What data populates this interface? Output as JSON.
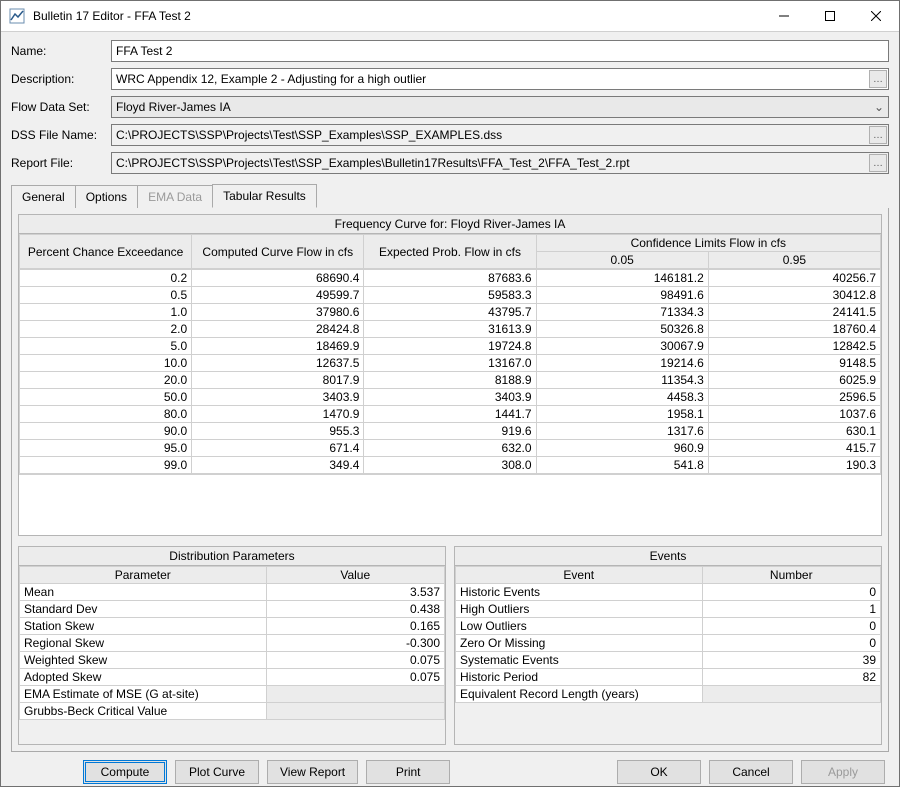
{
  "window": {
    "title": "Bulletin 17 Editor - FFA Test 2"
  },
  "form": {
    "name_label": "Name:",
    "name_value": "FFA Test 2",
    "description_label": "Description:",
    "description_value": "WRC Appendix 12, Example 2 - Adjusting for a high outlier",
    "dataset_label": "Flow Data Set:",
    "dataset_value": "Floyd River-James IA",
    "dss_label": "DSS File Name:",
    "dss_value": "C:\\PROJECTS\\SSP\\Projects\\Test\\SSP_Examples\\SSP_EXAMPLES.dss",
    "report_label": "Report File:",
    "report_value": "C:\\PROJECTS\\SSP\\Projects\\Test\\SSP_Examples\\Bulletin17Results\\FFA_Test_2\\FFA_Test_2.rpt"
  },
  "tabs": {
    "general": "General",
    "options": "Options",
    "ema": "EMA Data",
    "tabular": "Tabular Results"
  },
  "freq": {
    "title": "Frequency Curve for: Floyd River-James IA",
    "headers": {
      "pce": "Percent Chance Exceedance",
      "computed": "Computed Curve Flow in cfs",
      "expected": "Expected Prob. Flow in cfs",
      "conf": "Confidence Limits Flow in cfs",
      "c05": "0.05",
      "c95": "0.95"
    },
    "rows": [
      {
        "p": "0.2",
        "c": "68690.4",
        "e": "87683.6",
        "l": "146181.2",
        "u": "40256.7"
      },
      {
        "p": "0.5",
        "c": "49599.7",
        "e": "59583.3",
        "l": "98491.6",
        "u": "30412.8"
      },
      {
        "p": "1.0",
        "c": "37980.6",
        "e": "43795.7",
        "l": "71334.3",
        "u": "24141.5"
      },
      {
        "p": "2.0",
        "c": "28424.8",
        "e": "31613.9",
        "l": "50326.8",
        "u": "18760.4"
      },
      {
        "p": "5.0",
        "c": "18469.9",
        "e": "19724.8",
        "l": "30067.9",
        "u": "12842.5"
      },
      {
        "p": "10.0",
        "c": "12637.5",
        "e": "13167.0",
        "l": "19214.6",
        "u": "9148.5"
      },
      {
        "p": "20.0",
        "c": "8017.9",
        "e": "8188.9",
        "l": "11354.3",
        "u": "6025.9"
      },
      {
        "p": "50.0",
        "c": "3403.9",
        "e": "3403.9",
        "l": "4458.3",
        "u": "2596.5"
      },
      {
        "p": "80.0",
        "c": "1470.9",
        "e": "1441.7",
        "l": "1958.1",
        "u": "1037.6"
      },
      {
        "p": "90.0",
        "c": "955.3",
        "e": "919.6",
        "l": "1317.6",
        "u": "630.1"
      },
      {
        "p": "95.0",
        "c": "671.4",
        "e": "632.0",
        "l": "960.9",
        "u": "415.7"
      },
      {
        "p": "99.0",
        "c": "349.4",
        "e": "308.0",
        "l": "541.8",
        "u": "190.3"
      }
    ]
  },
  "dist": {
    "title": "Distribution Parameters",
    "h_param": "Parameter",
    "h_value": "Value",
    "rows": [
      {
        "n": "Mean",
        "v": "3.537"
      },
      {
        "n": "Standard Dev",
        "v": "0.438"
      },
      {
        "n": "Station Skew",
        "v": "0.165"
      },
      {
        "n": "Regional Skew",
        "v": "-0.300"
      },
      {
        "n": "Weighted Skew",
        "v": "0.075"
      },
      {
        "n": "Adopted Skew",
        "v": "0.075"
      },
      {
        "n": "EMA Estimate of MSE (G at-site)",
        "v": ""
      },
      {
        "n": "Grubbs-Beck Critical Value",
        "v": ""
      }
    ]
  },
  "events": {
    "title": "Events",
    "h_event": "Event",
    "h_number": "Number",
    "rows": [
      {
        "n": "Historic Events",
        "v": "0"
      },
      {
        "n": "High Outliers",
        "v": "1"
      },
      {
        "n": "Low Outliers",
        "v": "0"
      },
      {
        "n": "Zero Or Missing",
        "v": "0"
      },
      {
        "n": "Systematic Events",
        "v": "39"
      },
      {
        "n": "Historic Period",
        "v": "82"
      },
      {
        "n": "Equivalent Record Length (years)",
        "v": ""
      }
    ]
  },
  "buttons": {
    "compute": "Compute",
    "plot": "Plot Curve",
    "view": "View Report",
    "print": "Print",
    "ok": "OK",
    "cancel": "Cancel",
    "apply": "Apply"
  }
}
